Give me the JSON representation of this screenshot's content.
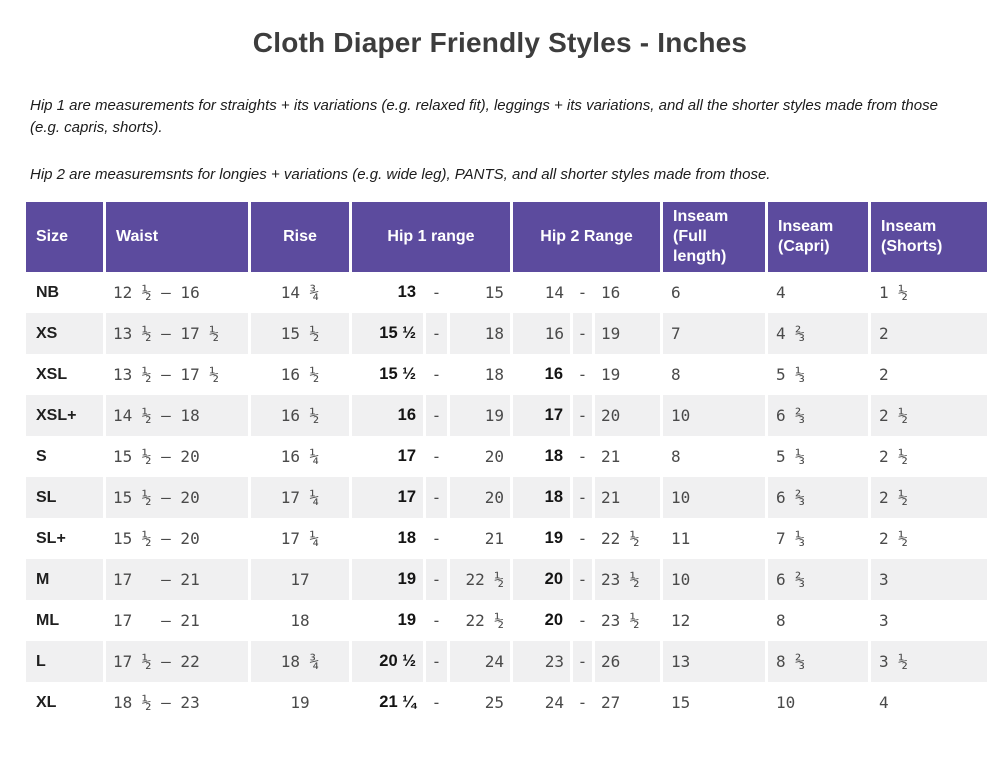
{
  "page": {
    "title": "Cloth Diaper Friendly Styles - Inches",
    "note_hip1": "Hip 1 are measurements for straights + its variations (e.g. relaxed fit), leggings + its variations, and all the shorter styles made from those (e.g. capris, shorts).",
    "note_hip2": "Hip 2 are measuremsnts for longies + variations (e.g. wide leg), PANTS, and all shorter styles made from those."
  },
  "colors": {
    "header_background": "#5c4b9e",
    "stripe_row": "#f0f0f1",
    "number_text": "#4a4a4a",
    "bold_text": "#141414"
  },
  "table": {
    "headers": {
      "size": "Size",
      "waist": "Waist",
      "rise": "Rise",
      "hip1": "Hip 1 range",
      "hip2": "Hip 2 Range",
      "inseam_full": "Inseam (Full length)",
      "inseam_capri": "Inseam (Capri)",
      "inseam_shorts": "Inseam (Shorts)"
    },
    "range_dash": "-",
    "rows": [
      {
        "size": "NB",
        "waist": "12 ½ – 16",
        "rise": "14 ¾",
        "hip1_lower": "13",
        "hip1_upper": "15",
        "hip2_lower": "14",
        "hip2_lower_style": "mono",
        "hip2_upper": "16",
        "inseam_full": "6",
        "inseam_capri": "4",
        "inseam_shorts": "1 ½"
      },
      {
        "size": "XS",
        "waist": "13 ½ – 17 ½",
        "rise": "15 ½",
        "hip1_lower": "15 ½",
        "hip1_upper": "18",
        "hip2_lower": "16",
        "hip2_lower_style": "mono",
        "hip2_upper": "19",
        "inseam_full": "7",
        "inseam_capri": "4 ⅔",
        "inseam_shorts": "2"
      },
      {
        "size": "XSL",
        "waist": "13 ½ – 17 ½",
        "rise": "16 ½",
        "hip1_lower": "15 ½",
        "hip1_upper": "18",
        "hip2_lower": "16",
        "hip2_lower_style": "bold",
        "hip2_upper": "19",
        "inseam_full": "8",
        "inseam_capri": "5 ⅓",
        "inseam_shorts": "2"
      },
      {
        "size": "XSL+",
        "waist": "14 ½ – 18",
        "rise": "16 ½",
        "hip1_lower": "16",
        "hip1_upper": "19",
        "hip2_lower": "17",
        "hip2_lower_style": "bold",
        "hip2_upper": "20",
        "inseam_full": "10",
        "inseam_capri": "6 ⅔",
        "inseam_shorts": "2 ½"
      },
      {
        "size": "S",
        "waist": "15 ½ – 20",
        "rise": "16 ¼",
        "hip1_lower": "17",
        "hip1_upper": "20",
        "hip2_lower": "18",
        "hip2_lower_style": "bold",
        "hip2_upper": "21",
        "inseam_full": "8",
        "inseam_capri": "5 ⅓",
        "inseam_shorts": "2 ½"
      },
      {
        "size": "SL",
        "waist": "15 ½ – 20",
        "rise": "17 ¼",
        "hip1_lower": "17",
        "hip1_upper": "20",
        "hip2_lower": "18",
        "hip2_lower_style": "bold",
        "hip2_upper": "21",
        "inseam_full": "10",
        "inseam_capri": "6 ⅔",
        "inseam_shorts": "2 ½"
      },
      {
        "size": "SL+",
        "waist": "15 ½ – 20",
        "rise": "17 ¼",
        "hip1_lower": "18",
        "hip1_upper": "21",
        "hip2_lower": "19",
        "hip2_lower_style": "bold",
        "hip2_upper": "22 ½",
        "inseam_full": "11",
        "inseam_capri": "7 ⅓",
        "inseam_shorts": "2 ½"
      },
      {
        "size": "M",
        "waist": "17   – 21",
        "rise": "17",
        "hip1_lower": "19",
        "hip1_upper": "22 ½",
        "hip2_lower": "20",
        "hip2_lower_style": "bold",
        "hip2_upper": "23 ½",
        "inseam_full": "10",
        "inseam_capri": "6 ⅔",
        "inseam_shorts": "3"
      },
      {
        "size": "ML",
        "waist": "17   – 21",
        "rise": "18",
        "hip1_lower": "19",
        "hip1_upper": "22 ½",
        "hip2_lower": "20",
        "hip2_lower_style": "bold",
        "hip2_upper": "23 ½",
        "inseam_full": "12",
        "inseam_capri": "8",
        "inseam_shorts": "3"
      },
      {
        "size": "L",
        "waist": "17 ½ – 22",
        "rise": "18 ¾",
        "hip1_lower": "20 ½",
        "hip1_upper": "24",
        "hip2_lower": "23",
        "hip2_lower_style": "mono",
        "hip2_upper": "26",
        "inseam_full": "13",
        "inseam_capri": "8 ⅔",
        "inseam_shorts": "3 ½"
      },
      {
        "size": "XL",
        "waist": "18 ½ – 23",
        "rise": "19",
        "hip1_lower": "21 ¼",
        "hip1_upper": "25",
        "hip2_lower": "24",
        "hip2_lower_style": "mono",
        "hip2_upper": "27",
        "inseam_full": "15",
        "inseam_capri": "10",
        "inseam_shorts": "4"
      }
    ]
  }
}
